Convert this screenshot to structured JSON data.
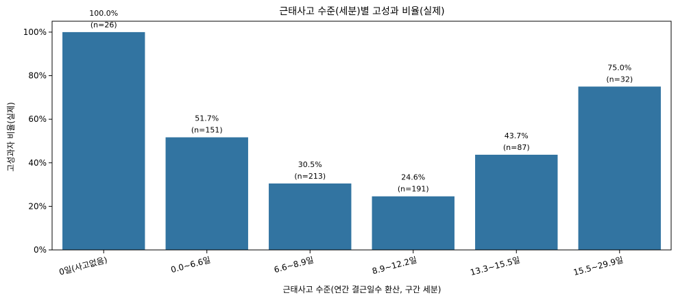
{
  "chart_data": {
    "type": "bar",
    "title": "근태사고 수준(세분)별 고성과 비율(실제)",
    "xlabel": "근태사고 수준(연간 결근일수 환산, 구간 세분)",
    "ylabel": "고성과자 비율(실제)",
    "categories": [
      "0일(사고없음)",
      "0.0~6.6일",
      "6.6~8.9일",
      "8.9~12.2일",
      "13.3~15.5일",
      "15.5~29.9일"
    ],
    "values": [
      100.0,
      51.7,
      30.5,
      24.6,
      43.7,
      75.0
    ],
    "value_labels": [
      "100.0%",
      "51.7%",
      "30.5%",
      "24.6%",
      "43.7%",
      "75.0%"
    ],
    "count_labels": [
      "(n=26)",
      "(n=151)",
      "(n=213)",
      "(n=191)",
      "(n=87)",
      "(n=32)"
    ],
    "ylim": [
      0,
      105
    ],
    "yticks": [
      0,
      20,
      40,
      60,
      80,
      100
    ],
    "ytick_labels": [
      "0%",
      "20%",
      "40%",
      "60%",
      "80%",
      "100%"
    ],
    "bar_color": "#3274a1",
    "grid": false,
    "legend": "none"
  }
}
